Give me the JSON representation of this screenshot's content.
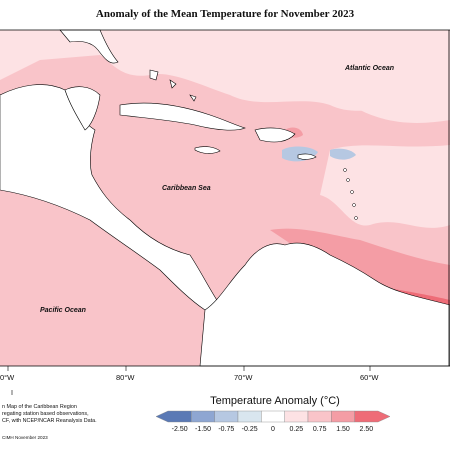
{
  "title": "Anomaly of the Mean Temperature for November 2023",
  "ocean_labels": {
    "atlantic": "Atlantic Ocean",
    "caribbean": "Caribbean Sea",
    "pacific": "Pacific Ocean"
  },
  "longitude_ticks": [
    "0°W",
    "80°W",
    "70°W",
    "60°W"
  ],
  "notes": {
    "line1": "n Map of the Caribbean Region",
    "line2": "regating station based observations,",
    "line3": "CF, with NCEP/NCAR Reanalysis Data.",
    "credit": "CIMH November 2023"
  },
  "legend": {
    "title": "Temperature Anomaly (°C)",
    "labels": [
      "-2.50",
      "-1.50",
      "-0.75",
      "-0.25",
      "0",
      "0.25",
      "0.75",
      "1.50",
      "2.50"
    ],
    "colors": [
      "#5a79b5",
      "#8ea6d2",
      "#b6c8e2",
      "#d9e6ef",
      "#ffffff",
      "#fde2e4",
      "#f9c4c9",
      "#f49da5",
      "#ee6c77"
    ]
  },
  "colors": {
    "land": "#ffffff",
    "anomaly_light": "#fde2e4",
    "anomaly_mid": "#f9c4c9",
    "anomaly_strong": "#f49da5",
    "anomaly_hot": "#ee6c77",
    "anomaly_cool": "#b6c8e2",
    "coast": "#000000"
  }
}
